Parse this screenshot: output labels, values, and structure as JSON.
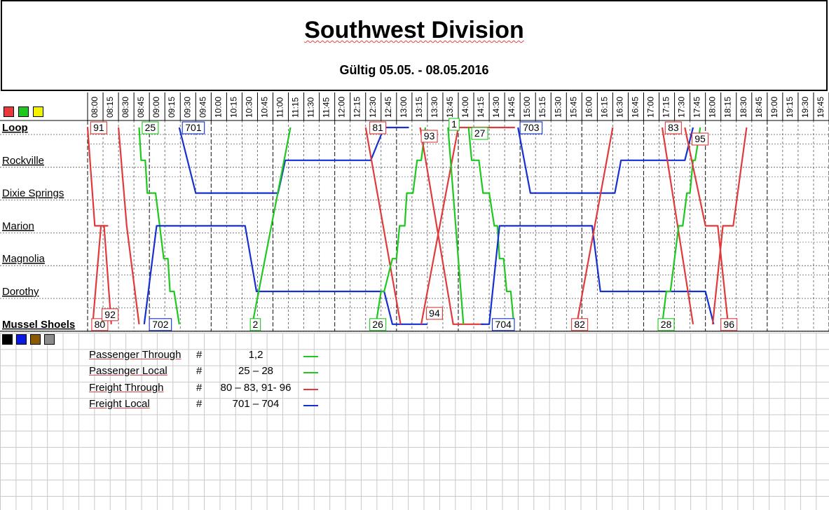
{
  "header": {
    "title": "Southwest Division",
    "subtitle": "Gültig 05.05. - 08.05.2016"
  },
  "swatches_top": [
    "#e83a3a",
    "#1ec81e",
    "#f3f300"
  ],
  "swatches_bottom": [
    "#000000",
    "#0a1ae0",
    "#8b5a00",
    "#8c8c8c"
  ],
  "chart_data": {
    "type": "line",
    "subtype": "train-timetable",
    "x_ticks": [
      "08:00",
      "08:15",
      "08:30",
      "08:45",
      "09:00",
      "09:15",
      "09:30",
      "09:45",
      "10:00",
      "10:15",
      "10:30",
      "10:45",
      "11:00",
      "11:15",
      "11:30",
      "11:45",
      "12:00",
      "12:15",
      "12:30",
      "12:45",
      "13:00",
      "13:15",
      "13:30",
      "13:45",
      "14:00",
      "14:15",
      "14:30",
      "14:45",
      "15:00",
      "15:15",
      "15:30",
      "15:45",
      "16:00",
      "16:15",
      "16:30",
      "16:45",
      "17:00",
      "17:15",
      "17:30",
      "17:45",
      "18:00",
      "18:15",
      "18:30",
      "18:45",
      "19:00",
      "19:15",
      "19:30",
      "19:45"
    ],
    "xlim": [
      "08:00",
      "20:00"
    ],
    "stations": [
      "Loop",
      "Rockville",
      "Dixie Springs",
      "Marion",
      "Magnolia",
      "Dorothy",
      "Mussel Shoels"
    ],
    "grid": true,
    "colors": {
      "freight_through": "#e03a3a",
      "passenger": "#1ec81e",
      "freight_local": "#1530d0"
    },
    "series": [
      {
        "name": "91",
        "color": "#e03a3a",
        "points": [
          [
            "08:00",
            "Loop"
          ],
          [
            "08:07",
            "Marion"
          ],
          [
            "08:16",
            "Marion"
          ],
          [
            "08:23",
            "Mussel Shoels"
          ]
        ]
      },
      {
        "name": "80",
        "color": "#e03a3a",
        "points": [
          [
            "08:05",
            "Mussel Shoels"
          ],
          [
            "08:13",
            "Marion"
          ],
          [
            "08:20",
            "Marion"
          ]
        ]
      },
      {
        "name": "92",
        "color": "#e03a3a",
        "points": [
          [
            "08:30",
            "Loop"
          ],
          [
            "08:38",
            "Marion"
          ],
          [
            "08:50",
            "Mussel Shoels"
          ]
        ]
      },
      {
        "name": "25",
        "color": "#1ec81e",
        "points": [
          [
            "08:50",
            "Loop"
          ],
          [
            "08:52",
            "Rockville"
          ],
          [
            "08:56",
            "Rockville"
          ],
          [
            "08:58",
            "Dixie Springs"
          ],
          [
            "09:06",
            "Dixie Springs"
          ],
          [
            "09:10",
            "Marion"
          ],
          [
            "09:14",
            "Magnolia"
          ],
          [
            "09:18",
            "Magnolia"
          ],
          [
            "09:20",
            "Dorothy"
          ],
          [
            "09:24",
            "Dorothy"
          ],
          [
            "09:29",
            "Mussel Shoels"
          ]
        ]
      },
      {
        "name": "701",
        "color": "#1530d0",
        "points": [
          [
            "09:29",
            "Loop"
          ],
          [
            "09:45",
            "Dixie Springs"
          ],
          [
            "11:05",
            "Dixie Springs"
          ],
          [
            "11:12",
            "Rockville"
          ],
          [
            "12:35",
            "Rockville"
          ],
          [
            "12:48",
            "Loop"
          ],
          [
            "13:12",
            "Loop"
          ]
        ]
      },
      {
        "name": "702",
        "color": "#1530d0",
        "points": [
          [
            "08:55",
            "Mussel Shoels"
          ],
          [
            "09:07",
            "Marion"
          ],
          [
            "10:33",
            "Marion"
          ],
          [
            "10:44",
            "Dorothy"
          ],
          [
            "12:48",
            "Dorothy"
          ],
          [
            "12:56",
            "Mussel Shoels"
          ],
          [
            "13:30",
            "Mussel Shoels"
          ]
        ]
      },
      {
        "name": "2",
        "color": "#1ec81e",
        "points": [
          [
            "10:40",
            "Mussel Shoels"
          ],
          [
            "11:17",
            "Loop"
          ]
        ]
      },
      {
        "name": "81",
        "color": "#e03a3a",
        "points": [
          [
            "12:30",
            "Loop"
          ],
          [
            "13:04",
            "Mussel Shoels"
          ]
        ]
      },
      {
        "name": "26",
        "color": "#1ec81e",
        "points": [
          [
            "12:40",
            "Mussel Shoels"
          ],
          [
            "12:45",
            "Dorothy"
          ],
          [
            "12:48",
            "Dorothy"
          ],
          [
            "12:56",
            "Magnolia"
          ],
          [
            "13:00",
            "Magnolia"
          ],
          [
            "13:03",
            "Marion"
          ],
          [
            "13:08",
            "Marion"
          ],
          [
            "13:10",
            "Dixie Springs"
          ],
          [
            "13:16",
            "Dixie Springs"
          ],
          [
            "13:20",
            "Rockville"
          ],
          [
            "13:24",
            "Rockville"
          ],
          [
            "13:28",
            "Loop"
          ]
        ]
      },
      {
        "name": "93",
        "color": "#e03a3a",
        "points": [
          [
            "13:23",
            "Loop"
          ],
          [
            "13:55",
            "Mussel Shoels"
          ],
          [
            "14:25",
            "Mussel Shoels"
          ]
        ]
      },
      {
        "name": "94",
        "color": "#e03a3a",
        "points": [
          [
            "13:24",
            "Mussel Shoels"
          ],
          [
            "14:00",
            "Loop"
          ],
          [
            "14:55",
            "Loop"
          ]
        ]
      },
      {
        "name": "1",
        "color": "#1ec81e",
        "points": [
          [
            "13:50",
            "Loop"
          ],
          [
            "14:05",
            "Mussel Shoels"
          ]
        ]
      },
      {
        "name": "27",
        "color": "#1ec81e",
        "points": [
          [
            "14:10",
            "Loop"
          ],
          [
            "14:13",
            "Rockville"
          ],
          [
            "14:20",
            "Rockville"
          ],
          [
            "14:24",
            "Dixie Springs"
          ],
          [
            "14:30",
            "Dixie Springs"
          ],
          [
            "14:35",
            "Marion"
          ],
          [
            "14:38",
            "Marion"
          ],
          [
            "14:40",
            "Magnolia"
          ],
          [
            "14:44",
            "Magnolia"
          ],
          [
            "14:47",
            "Dorothy"
          ],
          [
            "14:51",
            "Dorothy"
          ],
          [
            "14:54",
            "Mussel Shoels"
          ]
        ]
      },
      {
        "name": "703",
        "color": "#1530d0",
        "points": [
          [
            "14:58",
            "Loop"
          ],
          [
            "15:10",
            "Dixie Springs"
          ],
          [
            "16:32",
            "Dixie Springs"
          ],
          [
            "16:38",
            "Rockville"
          ],
          [
            "17:40",
            "Rockville"
          ],
          [
            "17:48",
            "Loop"
          ]
        ]
      },
      {
        "name": "704",
        "color": "#1530d0",
        "points": [
          [
            "14:22",
            "Mussel Shoels"
          ],
          [
            "14:30",
            "Mussel Shoels"
          ],
          [
            "14:40",
            "Marion"
          ],
          [
            "16:10",
            "Marion"
          ],
          [
            "16:18",
            "Dorothy"
          ],
          [
            "18:00",
            "Dorothy"
          ],
          [
            "18:08",
            "Mussel Shoels"
          ]
        ]
      },
      {
        "name": "82",
        "color": "#e03a3a",
        "points": [
          [
            "15:55",
            "Mussel Shoels"
          ],
          [
            "16:30",
            "Loop"
          ]
        ]
      },
      {
        "name": "83",
        "color": "#e03a3a",
        "points": [
          [
            "17:18",
            "Loop"
          ],
          [
            "17:48",
            "Mussel Shoels"
          ]
        ]
      },
      {
        "name": "28",
        "color": "#1ec81e",
        "points": [
          [
            "17:18",
            "Mussel Shoels"
          ],
          [
            "17:22",
            "Dorothy"
          ],
          [
            "17:26",
            "Dorothy"
          ],
          [
            "17:30",
            "Magnolia"
          ],
          [
            "17:34",
            "Marion"
          ],
          [
            "17:38",
            "Marion"
          ],
          [
            "17:42",
            "Dixie Springs"
          ],
          [
            "17:45",
            "Dixie Springs"
          ],
          [
            "17:48",
            "Rockville"
          ],
          [
            "17:50",
            "Rockville"
          ],
          [
            "17:55",
            "Loop"
          ]
        ]
      },
      {
        "name": "95",
        "color": "#e03a3a",
        "points": [
          [
            "17:40",
            "Loop"
          ],
          [
            "18:00",
            "Marion"
          ],
          [
            "18:12",
            "Marion"
          ],
          [
            "18:22",
            "Mussel Shoels"
          ]
        ]
      },
      {
        "name": "96",
        "color": "#e03a3a",
        "points": [
          [
            "18:07",
            "Mussel Shoels"
          ],
          [
            "18:17",
            "Marion"
          ],
          [
            "18:27",
            "Marion"
          ],
          [
            "18:40",
            "Loop"
          ]
        ]
      }
    ],
    "train_labels": [
      {
        "text": "91",
        "color": "#e03a3a",
        "t": "08:03",
        "station": "Loop"
      },
      {
        "text": "25",
        "color": "#1ec81e",
        "t": "08:53",
        "station": "Loop"
      },
      {
        "text": "701",
        "color": "#1530d0",
        "t": "09:32",
        "station": "Loop"
      },
      {
        "text": "81",
        "color": "#e03a3a",
        "t": "12:34",
        "station": "Loop"
      },
      {
        "text": "93",
        "color": "#e03a3a",
        "t": "13:24",
        "station": "Loop",
        "dy": 12
      },
      {
        "text": "1",
        "color": "#1ec81e",
        "t": "13:51",
        "station": "Loop",
        "dy": -5
      },
      {
        "text": "27",
        "color": "#1ec81e",
        "t": "14:13",
        "station": "Loop",
        "dy": 8
      },
      {
        "text": "703",
        "color": "#1530d0",
        "t": "15:00",
        "station": "Loop"
      },
      {
        "text": "83",
        "color": "#e03a3a",
        "t": "17:21",
        "station": "Loop"
      },
      {
        "text": "95",
        "color": "#e03a3a",
        "t": "17:47",
        "station": "Loop",
        "dy": 16
      },
      {
        "text": "80",
        "color": "#e03a3a",
        "t": "08:04",
        "station": "Mussel Shoels"
      },
      {
        "text": "92",
        "color": "#e03a3a",
        "t": "08:14",
        "station": "Mussel Shoels",
        "dy": -14
      },
      {
        "text": "702",
        "color": "#1530d0",
        "t": "09:00",
        "station": "Mussel Shoels"
      },
      {
        "text": "2",
        "color": "#1ec81e",
        "t": "10:38",
        "station": "Mussel Shoels"
      },
      {
        "text": "26",
        "color": "#1ec81e",
        "t": "12:34",
        "station": "Mussel Shoels"
      },
      {
        "text": "94",
        "color": "#e03a3a",
        "t": "13:29",
        "station": "Mussel Shoels",
        "dy": -16
      },
      {
        "text": "704",
        "color": "#1530d0",
        "t": "14:33",
        "station": "Mussel Shoels"
      },
      {
        "text": "82",
        "color": "#e03a3a",
        "t": "15:50",
        "station": "Mussel Shoels"
      },
      {
        "text": "28",
        "color": "#1ec81e",
        "t": "17:14",
        "station": "Mussel Shoels"
      },
      {
        "text": "96",
        "color": "#e03a3a",
        "t": "18:15",
        "station": "Mussel Shoels"
      }
    ]
  },
  "legend": [
    {
      "label": "Passenger Through",
      "hash": "#",
      "numbers": "1,2",
      "color": "#1ec81e"
    },
    {
      "label": "Passenger Local",
      "hash": "#",
      "numbers": "25 – 28",
      "color": "#1ec81e"
    },
    {
      "label": "Freight Through",
      "hash": "#",
      "numbers": "80 – 83, 91- 96",
      "color": "#e03a3a"
    },
    {
      "label": "Freight Local",
      "hash": "#",
      "numbers": "701 – 704",
      "color": "#1530d0"
    }
  ]
}
